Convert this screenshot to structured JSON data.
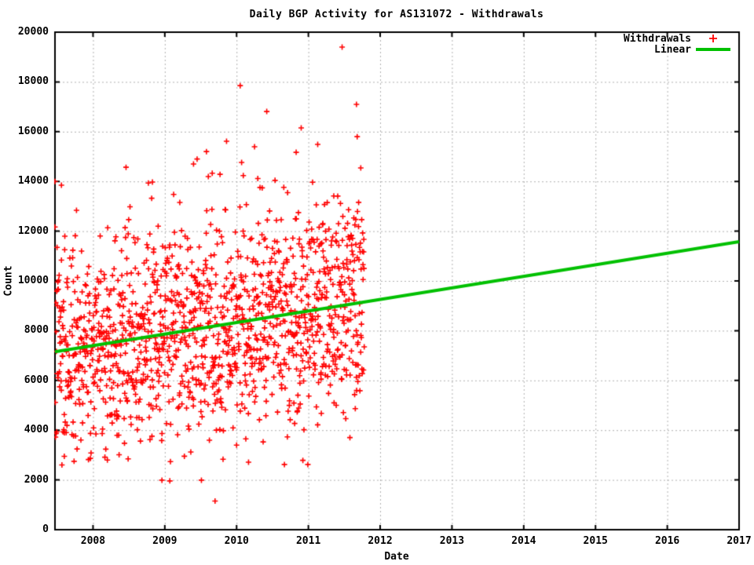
{
  "chart_data": {
    "type": "scatter",
    "title": "Daily BGP Activity for AS131072 - Withdrawals",
    "xlabel": "Date",
    "ylabel": "Count",
    "xlim": [
      2007.47,
      2017
    ],
    "ylim": [
      0,
      20000
    ],
    "x_ticks": [
      2008,
      2009,
      2010,
      2011,
      2012,
      2013,
      2014,
      2015,
      2016,
      2017
    ],
    "y_ticks": [
      0,
      2000,
      4000,
      6000,
      8000,
      10000,
      12000,
      14000,
      16000,
      18000,
      20000
    ],
    "grid": true,
    "legend_position": "top-right-inside",
    "colors": {
      "withdrawals": "#ff0000",
      "linear": "#00c000",
      "grid": "#b0b0b0",
      "border": "#000000",
      "background": "#ffffff"
    },
    "series": [
      {
        "name": "Withdrawals",
        "type": "scatter",
        "marker": "plus",
        "color": "#ff0000",
        "data_span": {
          "x_start": 2007.47,
          "x_end": 2011.78
        },
        "cloud": {
          "seed": 7,
          "count": 1450,
          "trend_start_y": 7150,
          "trend_slope_per_year": 465,
          "noise_sd": 2150,
          "y_clip_min": 2600,
          "y_clip_max": 14500
        },
        "outlier_points": [
          [
            2011.47,
            19400
          ],
          [
            2010.05,
            17850
          ],
          [
            2011.67,
            17100
          ],
          [
            2010.42,
            16810
          ],
          [
            2010.9,
            16150
          ],
          [
            2011.68,
            15800
          ],
          [
            2009.86,
            15615
          ],
          [
            2010.25,
            15394
          ],
          [
            2011.13,
            15489
          ],
          [
            2010.83,
            15170
          ],
          [
            2009.58,
            15200
          ],
          [
            2010.07,
            14763
          ],
          [
            2011.73,
            14542
          ],
          [
            2008.46,
            14570
          ],
          [
            2009.4,
            14700
          ],
          [
            2009.45,
            14900
          ],
          [
            2007.47,
            14000
          ],
          [
            2007.56,
            13850
          ],
          [
            2008.96,
            1990
          ],
          [
            2009.07,
            1960
          ],
          [
            2009.51,
            1990
          ],
          [
            2009.7,
            1150
          ],
          [
            2010.0,
            3400
          ],
          [
            2010.37,
            3530
          ],
          [
            2008.2,
            2800
          ],
          [
            2007.6,
            2950
          ]
        ]
      },
      {
        "name": "Linear",
        "type": "line",
        "color": "#00c000",
        "width": 4,
        "points": [
          [
            2007.47,
            7150
          ],
          [
            2017,
            11580
          ]
        ]
      }
    ]
  }
}
